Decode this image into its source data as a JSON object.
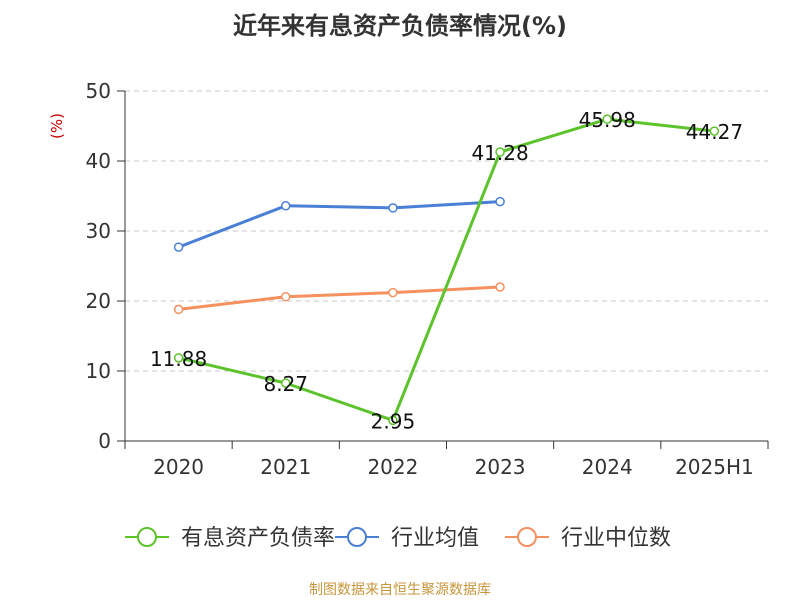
{
  "chart_data": {
    "type": "line",
    "title": "近年来有息资产负债率情况(%)",
    "y_unit_label": "(%)",
    "categories": [
      "2020",
      "2021",
      "2022",
      "2023",
      "2024",
      "2025H1"
    ],
    "ylim": [
      0,
      50
    ],
    "yticks": [
      0,
      10,
      20,
      30,
      40,
      50
    ],
    "grid": true,
    "legend_position": "bottom",
    "series": [
      {
        "name": "有息资产负债率",
        "color": "#5cc32b",
        "values": [
          11.88,
          8.27,
          2.95,
          41.28,
          45.98,
          44.27
        ],
        "labels": [
          "11.88",
          "8.27",
          "2.95",
          "41.28",
          "45.98",
          "44.27"
        ]
      },
      {
        "name": "行业均值",
        "color": "#4a7fd6",
        "values": [
          27.7,
          33.6,
          33.3,
          34.2,
          null,
          null
        ]
      },
      {
        "name": "行业中位数",
        "color": "#f5915f",
        "values": [
          18.8,
          20.6,
          21.2,
          22.0,
          null,
          null
        ]
      }
    ]
  },
  "source_note": "制图数据来自恒生聚源数据库"
}
